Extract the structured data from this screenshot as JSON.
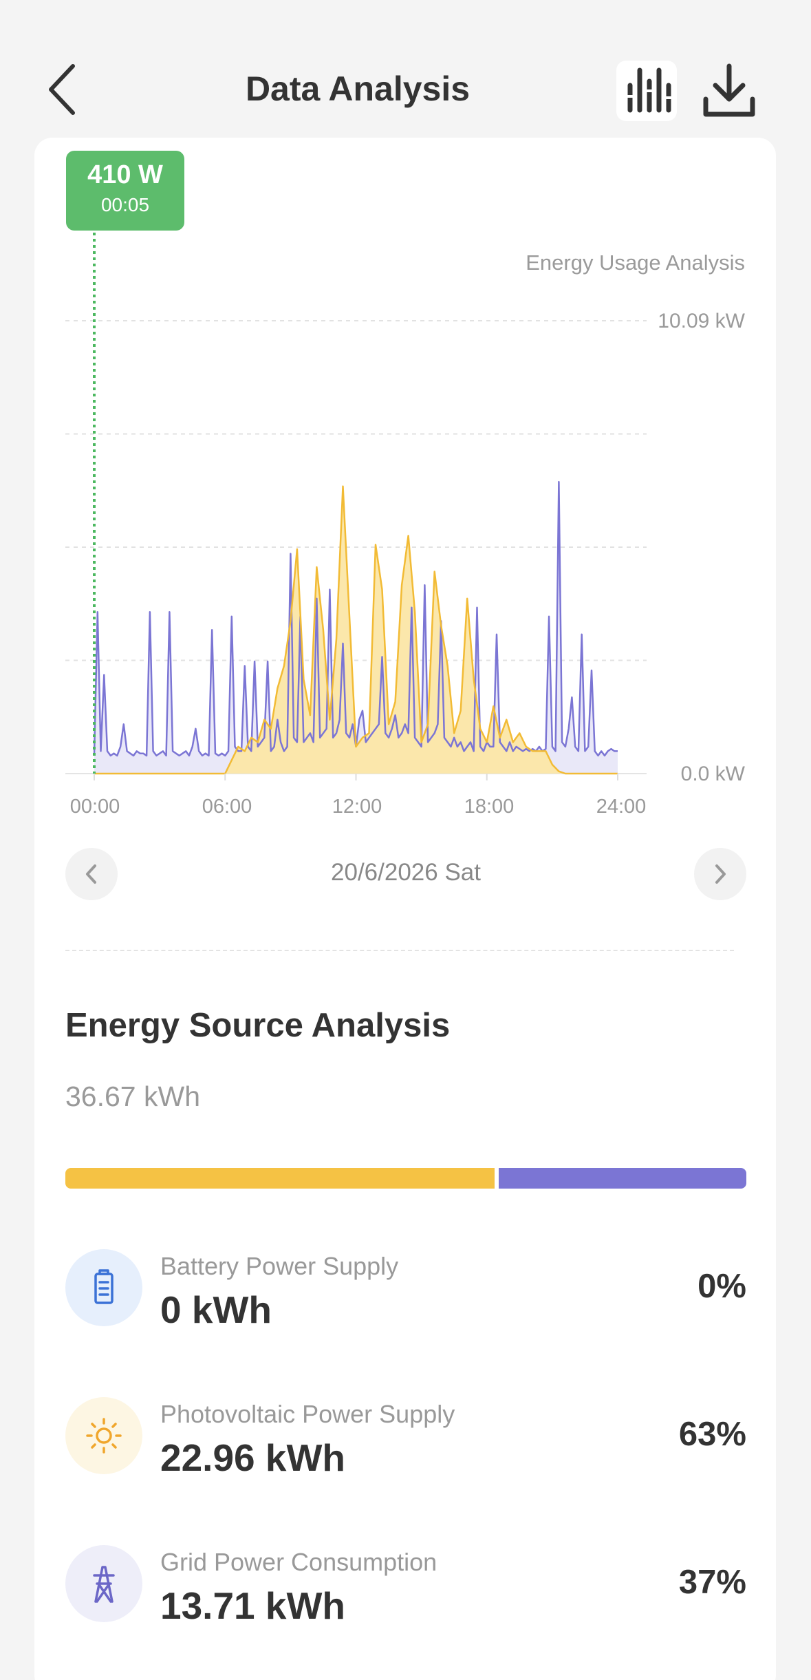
{
  "header": {
    "title": "Data Analysis"
  },
  "tooltip": {
    "value": "410 W",
    "time": "00:05"
  },
  "chart_data": {
    "type": "area",
    "title": "Energy Usage Analysis",
    "y_max_label": "10.09 kW",
    "y_min_label": "0.0 kW",
    "ylim": [
      0,
      10.09
    ],
    "x_ticks": [
      "00:00",
      "06:00",
      "12:00",
      "18:00",
      "24:00"
    ],
    "xlim_hours": [
      0,
      24
    ],
    "series": [
      {
        "name": "Grid",
        "color": "#7b75d4",
        "x": [
          0,
          0.15,
          0.3,
          0.45,
          0.6,
          0.75,
          0.9,
          1.05,
          1.2,
          1.35,
          1.5,
          1.65,
          1.8,
          1.95,
          2.1,
          2.25,
          2.4,
          2.55,
          2.7,
          2.85,
          3.0,
          3.15,
          3.3,
          3.45,
          3.6,
          3.75,
          3.9,
          4.05,
          4.2,
          4.35,
          4.5,
          4.65,
          4.8,
          4.95,
          5.1,
          5.25,
          5.4,
          5.55,
          5.7,
          5.85,
          6.0,
          6.15,
          6.3,
          6.45,
          6.6,
          6.75,
          6.9,
          7.05,
          7.2,
          7.35,
          7.5,
          7.65,
          7.8,
          7.95,
          8.1,
          8.25,
          8.4,
          8.55,
          8.7,
          8.85,
          9.0,
          9.15,
          9.3,
          9.45,
          9.6,
          9.75,
          9.9,
          10.05,
          10.2,
          10.35,
          10.5,
          10.65,
          10.8,
          10.95,
          11.1,
          11.25,
          11.4,
          11.55,
          11.7,
          11.85,
          12.0,
          12.15,
          12.3,
          12.45,
          12.6,
          12.75,
          12.9,
          13.05,
          13.2,
          13.35,
          13.5,
          13.65,
          13.8,
          13.95,
          14.1,
          14.25,
          14.4,
          14.55,
          14.7,
          14.85,
          15.0,
          15.15,
          15.3,
          15.45,
          15.6,
          15.75,
          15.9,
          16.05,
          16.2,
          16.35,
          16.5,
          16.65,
          16.8,
          16.95,
          17.1,
          17.25,
          17.4,
          17.55,
          17.7,
          17.85,
          18.0,
          18.15,
          18.3,
          18.45,
          18.6,
          18.75,
          18.9,
          19.05,
          19.2,
          19.35,
          19.5,
          19.65,
          19.8,
          19.95,
          20.1,
          20.25,
          20.4,
          20.55,
          20.7,
          20.85,
          21.0,
          21.15,
          21.3,
          21.45,
          21.6,
          21.75,
          21.9,
          22.05,
          22.2,
          22.35,
          22.5,
          22.65,
          22.8,
          22.95,
          23.1,
          23.25,
          23.4,
          23.55,
          23.7,
          23.85,
          24.0
        ],
        "values": [
          0.41,
          3.6,
          0.5,
          2.2,
          0.5,
          0.4,
          0.45,
          0.4,
          0.6,
          1.1,
          0.5,
          0.45,
          0.4,
          0.5,
          0.45,
          0.45,
          0.4,
          3.6,
          0.5,
          0.4,
          0.45,
          0.5,
          0.4,
          3.6,
          0.5,
          0.45,
          0.4,
          0.45,
          0.5,
          0.4,
          0.6,
          1.0,
          0.5,
          0.4,
          0.45,
          0.4,
          3.2,
          0.45,
          0.4,
          0.45,
          0.4,
          0.5,
          3.5,
          0.6,
          0.5,
          0.5,
          2.4,
          0.6,
          0.5,
          2.5,
          0.6,
          0.7,
          0.8,
          2.5,
          0.5,
          0.6,
          1.2,
          0.7,
          0.5,
          0.6,
          4.9,
          0.8,
          0.7,
          3.5,
          0.7,
          0.8,
          0.9,
          0.7,
          3.9,
          0.8,
          0.9,
          1.0,
          4.1,
          0.8,
          0.9,
          1.2,
          2.9,
          0.9,
          0.8,
          1.1,
          0.6,
          1.2,
          1.4,
          0.7,
          0.8,
          0.9,
          1.0,
          1.1,
          2.6,
          0.9,
          0.8,
          1.0,
          1.3,
          0.8,
          0.9,
          1.1,
          0.9,
          3.7,
          0.8,
          0.7,
          0.6,
          4.2,
          0.7,
          0.8,
          0.9,
          1.1,
          3.4,
          0.8,
          0.7,
          0.6,
          0.8,
          0.6,
          0.7,
          0.5,
          0.6,
          0.7,
          0.5,
          3.7,
          0.6,
          0.5,
          0.7,
          0.6,
          0.6,
          3.1,
          0.7,
          0.6,
          0.5,
          0.7,
          0.5,
          0.6,
          0.55,
          0.5,
          0.55,
          0.5,
          0.55,
          0.5,
          0.6,
          0.5,
          0.55,
          3.5,
          0.6,
          0.5,
          6.5,
          0.7,
          0.6,
          1.0,
          1.7,
          0.6,
          0.5,
          3.1,
          0.5,
          0.6,
          2.3,
          0.5,
          0.4,
          0.5,
          0.4,
          0.5,
          0.55,
          0.5,
          0.5
        ]
      },
      {
        "name": "Photovoltaic",
        "color": "#f5c244",
        "x": [
          0,
          6.0,
          6.3,
          6.6,
          6.9,
          7.2,
          7.5,
          7.8,
          8.1,
          8.4,
          8.7,
          9.0,
          9.3,
          9.6,
          9.9,
          10.2,
          10.5,
          10.8,
          11.1,
          11.4,
          11.7,
          12.0,
          12.3,
          12.6,
          12.9,
          13.2,
          13.5,
          13.8,
          14.1,
          14.4,
          14.7,
          15.0,
          15.3,
          15.6,
          15.9,
          16.2,
          16.5,
          16.8,
          17.1,
          17.4,
          17.7,
          18.0,
          18.3,
          18.6,
          18.9,
          19.2,
          19.5,
          19.8,
          20.1,
          20.4,
          20.7,
          21.0,
          21.3,
          21.6,
          22.0,
          24.0
        ],
        "values": [
          0,
          0,
          0.3,
          0.6,
          0.5,
          0.8,
          0.7,
          1.2,
          1.0,
          1.9,
          2.4,
          3.4,
          5.0,
          2.1,
          1.3,
          4.6,
          3.2,
          1.2,
          3.0,
          6.4,
          3.5,
          0.6,
          0.8,
          0.9,
          5.1,
          4.1,
          1.1,
          1.6,
          4.2,
          5.3,
          3.6,
          0.7,
          1.1,
          4.5,
          3.3,
          2.4,
          0.9,
          1.4,
          3.9,
          2.1,
          1.0,
          0.7,
          1.5,
          0.8,
          1.2,
          0.7,
          0.9,
          0.6,
          0.5,
          0.5,
          0.5,
          0.2,
          0.05,
          0,
          0,
          0
        ]
      }
    ]
  },
  "date_nav": {
    "date": "20/6/2026 Sat"
  },
  "energy_source": {
    "title": "Energy Source Analysis",
    "total": "36.67 kWh",
    "bar": {
      "pv_fraction": 0.63,
      "grid_fraction": 0.37
    },
    "items": [
      {
        "label": "Battery Power Supply",
        "value": "0 kWh",
        "percent": "0%",
        "icon": "battery-icon",
        "icon_bg": "#e6effc",
        "icon_color": "#3b72d6"
      },
      {
        "label": "Photovoltaic Power Supply",
        "value": "22.96 kWh",
        "percent": "63%",
        "icon": "sun-icon",
        "icon_bg": "#fdf6e3",
        "icon_color": "#f0a62c"
      },
      {
        "label": "Grid Power Consumption",
        "value": "13.71 kWh",
        "percent": "37%",
        "icon": "grid-tower-icon",
        "icon_bg": "#eeeef9",
        "icon_color": "#6b66c7"
      }
    ]
  }
}
